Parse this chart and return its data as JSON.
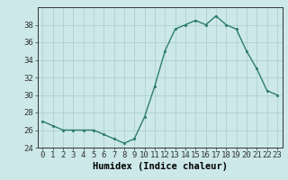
{
  "x": [
    0,
    1,
    2,
    3,
    4,
    5,
    6,
    7,
    8,
    9,
    10,
    11,
    12,
    13,
    14,
    15,
    16,
    17,
    18,
    19,
    20,
    21,
    22,
    23
  ],
  "y": [
    27,
    26.5,
    26,
    26,
    26,
    26,
    25.5,
    25,
    24.5,
    25,
    27.5,
    31,
    35,
    37.5,
    38,
    38.5,
    38,
    39,
    38,
    37.5,
    35,
    33,
    30.5,
    30
  ],
  "xlabel": "Humidex (Indice chaleur)",
  "xlim": [
    -0.5,
    23.5
  ],
  "ylim": [
    24,
    40
  ],
  "yticks": [
    24,
    26,
    28,
    30,
    32,
    34,
    36,
    38
  ],
  "xticks": [
    0,
    1,
    2,
    3,
    4,
    5,
    6,
    7,
    8,
    9,
    10,
    11,
    12,
    13,
    14,
    15,
    16,
    17,
    18,
    19,
    20,
    21,
    22,
    23
  ],
  "line_color": "#2e7d6e",
  "marker_color": "#2e7d6e",
  "bg_color": "#cce8e8",
  "grid_color": "#aacccc",
  "axis_color": "#333333",
  "xlabel_fontsize": 7.5,
  "tick_fontsize": 6.5,
  "line_width": 1.0,
  "marker_size": 2.5
}
